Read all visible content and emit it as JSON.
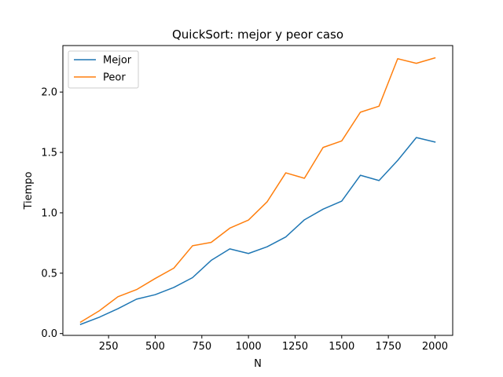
{
  "chart_data": {
    "type": "line",
    "title": "QuickSort: mejor y peor caso",
    "xlabel": "N",
    "ylabel": "Tiempo",
    "x": [
      100,
      200,
      300,
      400,
      500,
      600,
      700,
      800,
      900,
      1000,
      1100,
      1200,
      1300,
      1400,
      1500,
      1600,
      1700,
      1800,
      1900,
      2000
    ],
    "series": [
      {
        "name": "Mejor",
        "color": "#1f77b4",
        "values": [
          0.076,
          0.135,
          0.206,
          0.285,
          0.322,
          0.382,
          0.463,
          0.606,
          0.701,
          0.663,
          0.719,
          0.8,
          0.942,
          1.03,
          1.097,
          1.311,
          1.267,
          1.434,
          1.623,
          1.586
        ]
      },
      {
        "name": "Peor",
        "color": "#ff7f0e",
        "values": [
          0.095,
          0.188,
          0.305,
          0.364,
          0.456,
          0.542,
          0.727,
          0.755,
          0.873,
          0.94,
          1.091,
          1.331,
          1.286,
          1.541,
          1.595,
          1.833,
          1.883,
          2.276,
          2.238,
          2.283
        ]
      }
    ],
    "xlim": [
      5,
      2095
    ],
    "ylim": [
      -0.015,
      2.385
    ],
    "xticks": [
      250,
      500,
      750,
      1000,
      1250,
      1500,
      1750,
      2000
    ],
    "yticks": [
      0.0,
      0.5,
      1.0,
      1.5,
      2.0
    ],
    "xtick_labels": [
      "250",
      "500",
      "750",
      "1000",
      "1250",
      "1500",
      "1750",
      "2000"
    ],
    "ytick_labels": [
      "0.0",
      "0.5",
      "1.0",
      "1.5",
      "2.0"
    ],
    "grid": false,
    "legend_position": "top-left"
  }
}
